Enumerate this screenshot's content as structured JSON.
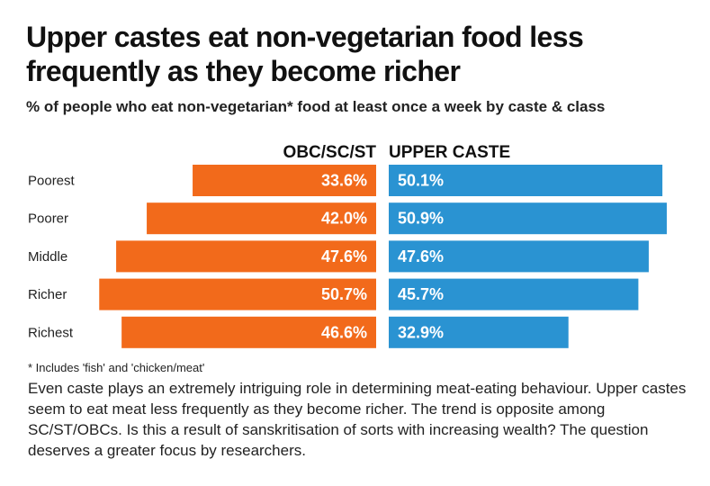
{
  "title": "Upper castes eat non-vegetarian food less frequently as they become richer",
  "subtitle": "% of people who eat non-vegetarian* food at least once a week by caste & class",
  "colors": {
    "obc": "#f26a1b",
    "upper": "#2a93d2",
    "label": "#ffffff"
  },
  "chart_data": {
    "type": "bar",
    "orientation": "horizontal-butterfly",
    "categories": [
      "Poorest",
      "Poorer",
      "Middle",
      "Richer",
      "Richest"
    ],
    "series": [
      {
        "name": "OBC/SC/ST",
        "values": [
          33.6,
          42.0,
          47.6,
          50.7,
          46.6
        ],
        "labels": [
          "33.6%",
          "42.0%",
          "47.6%",
          "50.7%",
          "46.6%"
        ]
      },
      {
        "name": "UPPER CASTE",
        "values": [
          50.1,
          50.9,
          47.6,
          45.7,
          32.9
        ],
        "labels": [
          "50.1%",
          "50.9%",
          "47.6%",
          "45.7%",
          "32.9%"
        ]
      }
    ],
    "unit": "%"
  },
  "footnote": "* Includes 'fish' and 'chicken/meat'",
  "body_text": "Even caste plays an extremely intriguing role in determining meat-eating behaviour. Upper castes seem to eat meat less frequently as they become richer. The trend is opposite among SC/ST/OBCs. Is this a result of sanskritisation of sorts with increasing wealth? The question deserves a greater focus by researchers."
}
